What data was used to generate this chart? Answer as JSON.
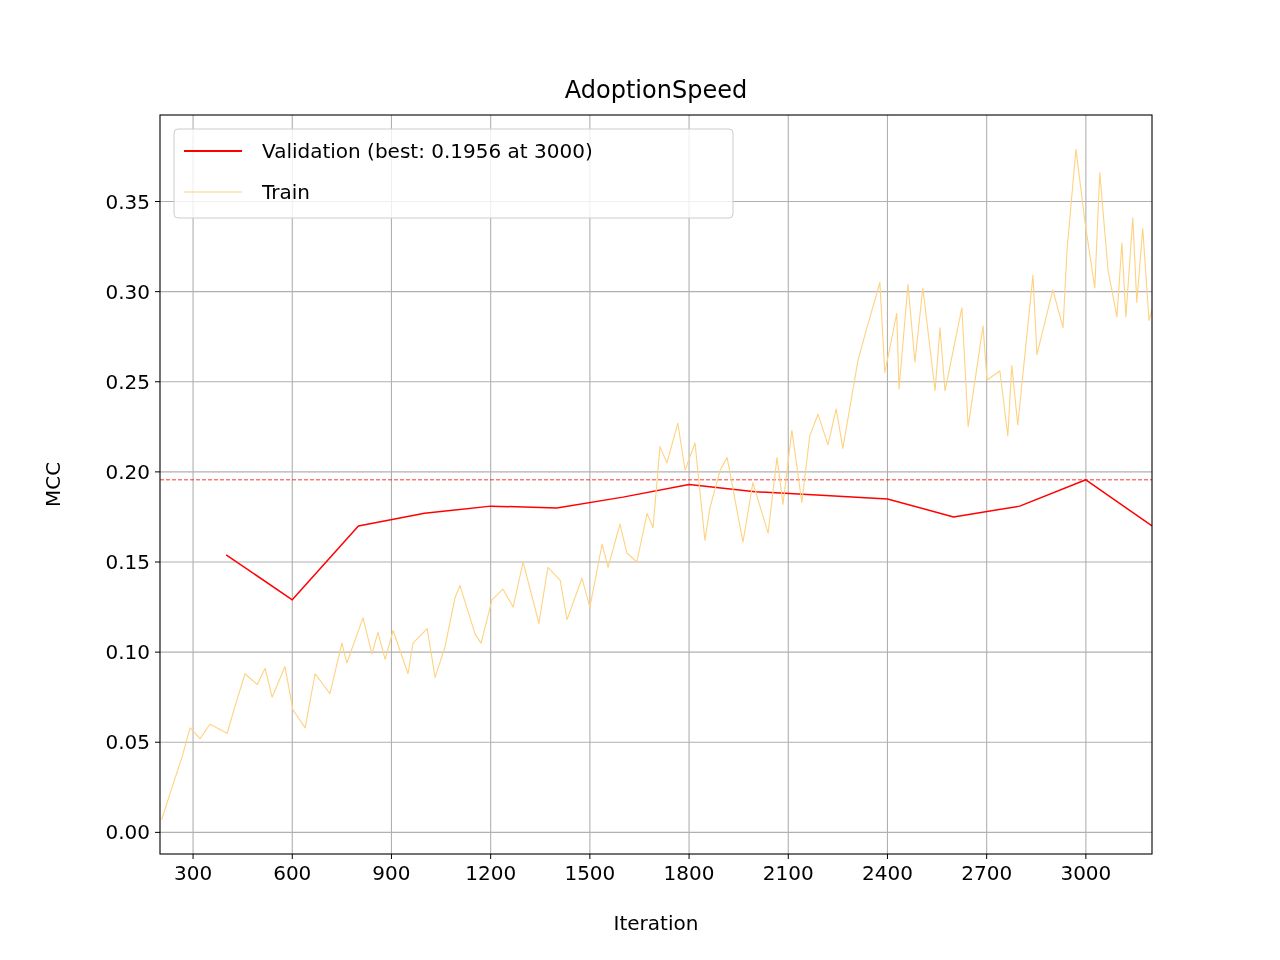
{
  "chart_data": {
    "type": "line",
    "title": "AdoptionSpeed",
    "xlabel": "Iteration",
    "ylabel": "MCC",
    "xlim": [
      200,
      3200
    ],
    "xticks": [
      300,
      600,
      900,
      1200,
      1500,
      1800,
      2100,
      2400,
      2700,
      3000
    ],
    "ylim": [
      -0.012,
      0.398
    ],
    "yticks": [
      {
        "value": 0,
        "label": "0.00"
      },
      {
        "value": 0.05,
        "label": "0.05"
      },
      {
        "value": 0.1,
        "label": "0.10"
      },
      {
        "value": 0.15,
        "label": "0.15"
      },
      {
        "value": 0.2,
        "label": "0.20"
      },
      {
        "value": 0.25,
        "label": "0.25"
      },
      {
        "value": 0.3,
        "label": "0.30"
      },
      {
        "value": 0.35,
        "label": "0.35"
      }
    ],
    "grid": true,
    "legend": "top left",
    "line_style": "solid",
    "marker": "none",
    "ref_lines": [
      {
        "axis": "y",
        "value": 0.1956,
        "color": "#ff0000",
        "line_style": "dashed"
      }
    ],
    "series": [
      {
        "name": "Validation (best: 0.1956 at 3000)",
        "color": "#ff0000",
        "x": [
          400,
          600,
          800,
          1000,
          1200,
          1400,
          1600,
          1800,
          2000,
          2200,
          2400,
          2600,
          2800,
          3000,
          3200
        ],
        "values": [
          0.154,
          0.129,
          0.17,
          0.177,
          0.181,
          0.18,
          0.186,
          0.193,
          0.189,
          0.187,
          0.185,
          0.175,
          0.181,
          0.1956,
          0.17
        ]
      },
      {
        "name": "Train",
        "color": "#ffd280",
        "x": [
          205,
          240,
          267,
          291,
          321,
          351,
          403,
          427,
          457,
          494,
          518,
          539,
          578,
          602,
          639,
          669,
          714,
          750,
          765,
          814,
          841,
          859,
          881,
          905,
          950,
          965,
          1008,
          1032,
          1062,
          1092,
          1107,
          1153,
          1171,
          1204,
          1237,
          1268,
          1298,
          1346,
          1373,
          1410,
          1431,
          1476,
          1500,
          1537,
          1555,
          1591,
          1612,
          1642,
          1673,
          1691,
          1712,
          1733,
          1766,
          1788,
          1818,
          1848,
          1863,
          1894,
          1915,
          1963,
          1993,
          2039,
          2066,
          2084,
          2111,
          2141,
          2165,
          2190,
          2220,
          2245,
          2265,
          2311,
          2338,
          2377,
          2392,
          2428,
          2435,
          2462,
          2483,
          2507,
          2544,
          2559,
          2574,
          2625,
          2644,
          2689,
          2701,
          2740,
          2764,
          2776,
          2794,
          2840,
          2852,
          2900,
          2931,
          2943,
          2970,
          2997,
          3027,
          3042,
          3067,
          3094,
          3109,
          3121,
          3142,
          3154,
          3172,
          3191,
          3200
        ],
        "values": [
          0.007,
          0.027,
          0.042,
          0.058,
          0.052,
          0.06,
          0.055,
          0.07,
          0.088,
          0.082,
          0.091,
          0.075,
          0.092,
          0.068,
          0.058,
          0.088,
          0.077,
          0.105,
          0.094,
          0.119,
          0.099,
          0.111,
          0.096,
          0.112,
          0.088,
          0.105,
          0.113,
          0.086,
          0.103,
          0.13,
          0.137,
          0.11,
          0.105,
          0.129,
          0.135,
          0.125,
          0.15,
          0.116,
          0.147,
          0.14,
          0.118,
          0.141,
          0.125,
          0.16,
          0.147,
          0.171,
          0.155,
          0.15,
          0.177,
          0.169,
          0.214,
          0.205,
          0.227,
          0.201,
          0.216,
          0.162,
          0.18,
          0.201,
          0.208,
          0.161,
          0.194,
          0.166,
          0.208,
          0.182,
          0.223,
          0.183,
          0.22,
          0.232,
          0.215,
          0.235,
          0.213,
          0.262,
          0.28,
          0.305,
          0.255,
          0.288,
          0.246,
          0.304,
          0.261,
          0.302,
          0.245,
          0.28,
          0.245,
          0.291,
          0.225,
          0.281,
          0.251,
          0.256,
          0.22,
          0.259,
          0.226,
          0.309,
          0.265,
          0.301,
          0.28,
          0.323,
          0.379,
          0.339,
          0.302,
          0.366,
          0.312,
          0.286,
          0.327,
          0.286,
          0.341,
          0.294,
          0.335,
          0.284,
          0.29
        ]
      }
    ]
  }
}
